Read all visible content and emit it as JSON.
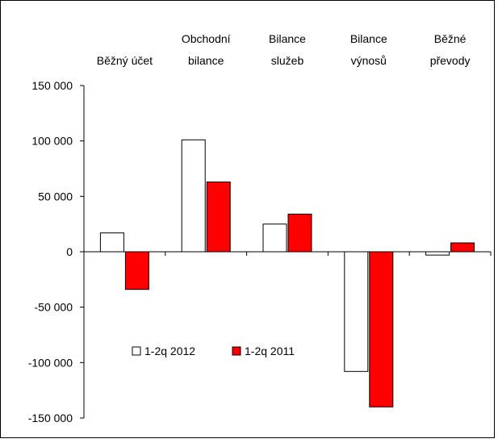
{
  "chart_data": {
    "type": "bar",
    "categories": [
      [
        "Běžný účet"
      ],
      [
        "Obchodní",
        "bilance"
      ],
      [
        "Bilance",
        "služeb"
      ],
      [
        "Bilance",
        "výnosů"
      ],
      [
        "Běžné",
        "převody"
      ]
    ],
    "series": [
      {
        "name": "1-2q 2012",
        "values": [
          17000,
          101000,
          25000,
          -108000,
          -3000
        ],
        "color": "#ffffff"
      },
      {
        "name": "1-2q 2011",
        "values": [
          -34000,
          63000,
          34000,
          -140000,
          8000
        ],
        "color": "#ff0000"
      }
    ],
    "ylim": [
      -150000,
      150000
    ],
    "yticks": [
      150000,
      100000,
      50000,
      0,
      -50000,
      -100000,
      -150000
    ],
    "ytick_labels": [
      "150 000",
      "100 000",
      "50 000",
      "0",
      "-50 000",
      "-100 000",
      "-150 000"
    ],
    "legend_position": "lower-left",
    "grid": false
  }
}
